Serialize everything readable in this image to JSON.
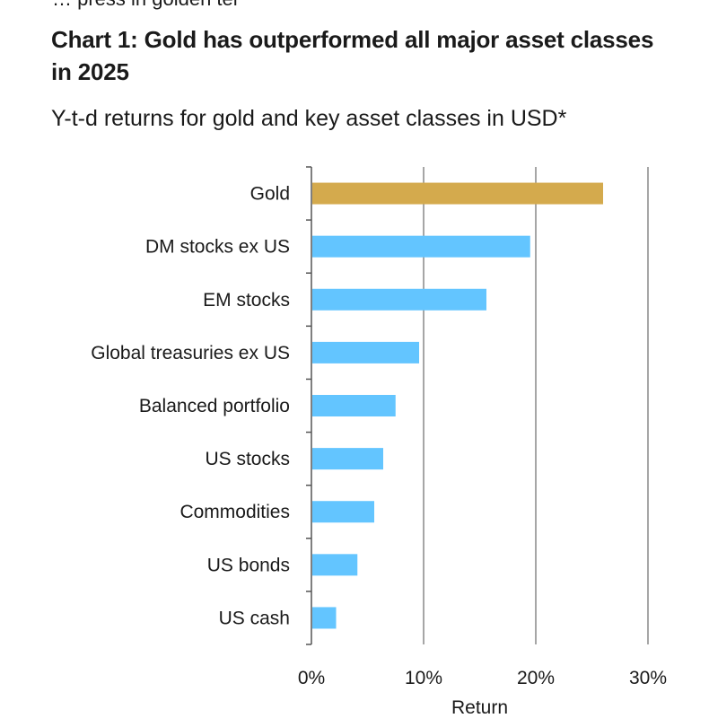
{
  "header": {
    "cut_text": "… press in golden ter"
  },
  "chart_data": {
    "type": "bar",
    "orientation": "horizontal",
    "title": "Chart 1: Gold has outperformed all major asset classes in 2025",
    "subtitle": "Y-t-d returns for gold and key asset classes in USD*",
    "categories": [
      "Gold",
      "DM stocks ex US",
      "EM stocks",
      "Global treasuries ex US",
      "Balanced portfolio",
      "US stocks",
      "Commodities",
      "US bonds",
      "US cash"
    ],
    "values": [
      26.0,
      19.5,
      15.6,
      9.6,
      7.5,
      6.4,
      5.6,
      4.1,
      2.2
    ],
    "colors": [
      "#D4AA4D",
      "#63C5FF",
      "#63C5FF",
      "#63C5FF",
      "#63C5FF",
      "#63C5FF",
      "#63C5FF",
      "#63C5FF",
      "#63C5FF"
    ],
    "xlim": [
      0,
      30
    ],
    "xticks": [
      0,
      10,
      20,
      30
    ],
    "xtick_labels": [
      "0%",
      "10%",
      "20%",
      "30%"
    ],
    "xlabel": "Return",
    "ylabel": "",
    "grid": "vertical"
  }
}
